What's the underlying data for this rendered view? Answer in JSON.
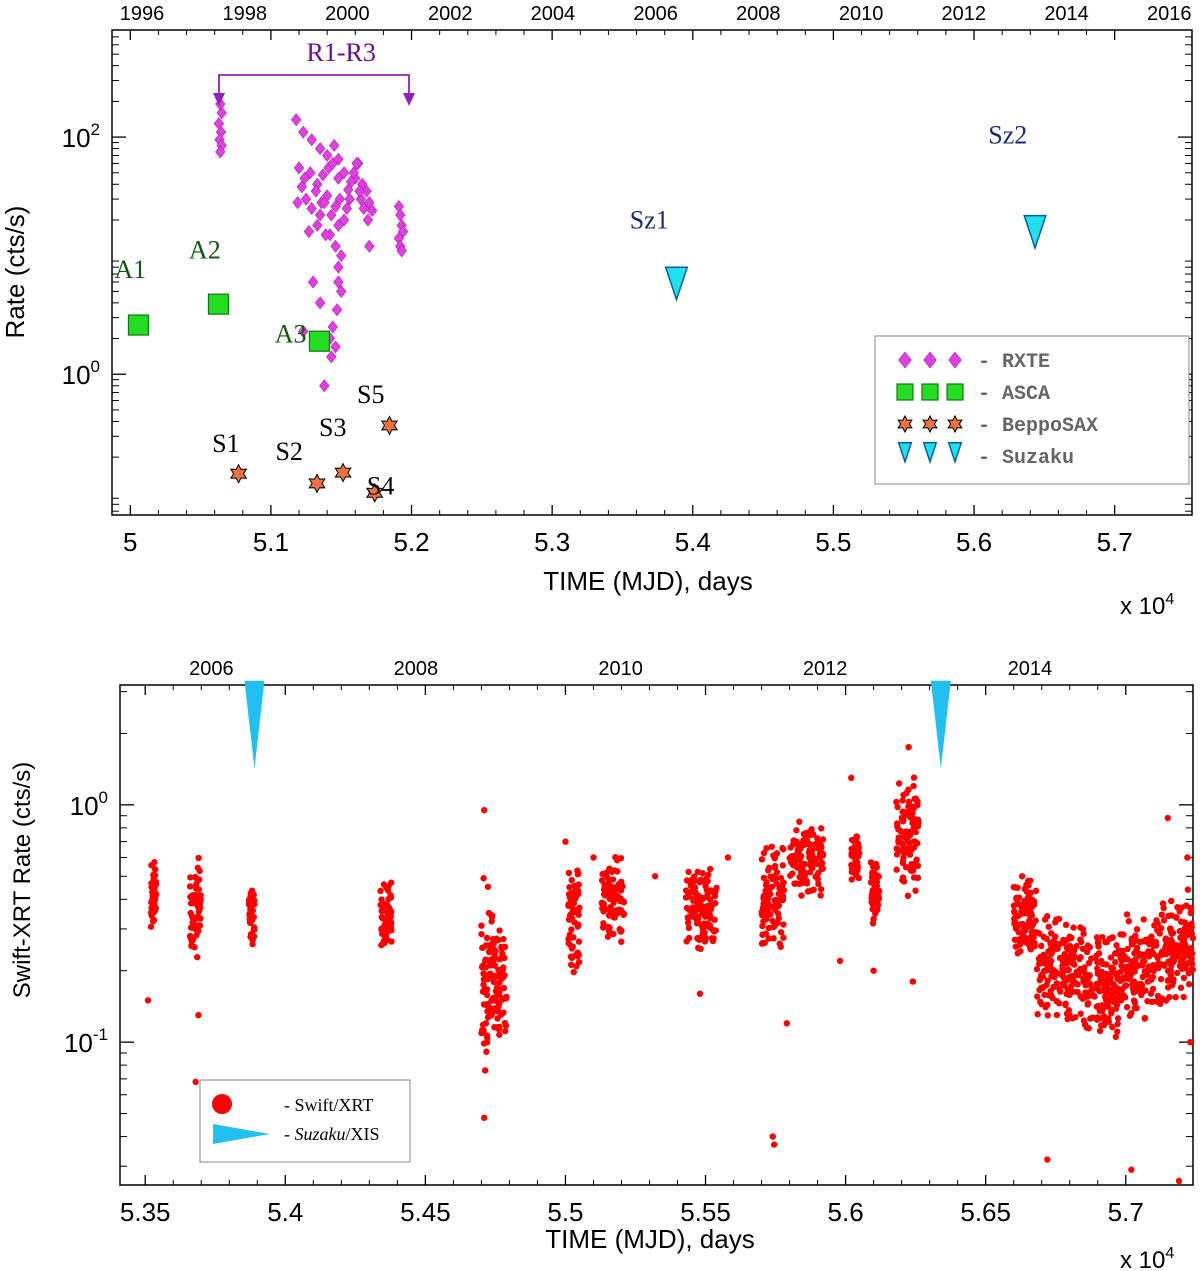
{
  "chart_data": [
    {
      "type": "scatter",
      "title": "",
      "xlabel": "TIME (MJD), days",
      "xscale_label": "x 10",
      "xscale_exp": "4",
      "ylabel": "Rate (cts/s)",
      "yscale": "log",
      "xlim": [
        49870,
        57550
      ],
      "ylim": [
        0.065,
        800
      ],
      "x_ticks": [
        {
          "v": 50000,
          "label": "5"
        },
        {
          "v": 51000,
          "label": "5.1"
        },
        {
          "v": 52000,
          "label": "5.2"
        },
        {
          "v": 53000,
          "label": "5.3"
        },
        {
          "v": 54000,
          "label": "5.4"
        },
        {
          "v": 55000,
          "label": "5.5"
        },
        {
          "v": 56000,
          "label": "5.6"
        },
        {
          "v": 57000,
          "label": "5.7"
        }
      ],
      "y_ticks": [
        {
          "v": 1,
          "base": "10",
          "exp": "0"
        },
        {
          "v": 100,
          "base": "10",
          "exp": "2"
        }
      ],
      "top_axis_years": [
        {
          "v": 50083,
          "label": "1996"
        },
        {
          "v": 50814,
          "label": "1998"
        },
        {
          "v": 51544,
          "label": "2000"
        },
        {
          "v": 52275,
          "label": "2002"
        },
        {
          "v": 53005,
          "label": "2004"
        },
        {
          "v": 53736,
          "label": "2006"
        },
        {
          "v": 54466,
          "label": "2008"
        },
        {
          "v": 55197,
          "label": "2010"
        },
        {
          "v": 55927,
          "label": "2012"
        },
        {
          "v": 56658,
          "label": "2014"
        },
        {
          "v": 57388,
          "label": "2016"
        }
      ],
      "series": [
        {
          "name": "RXTE",
          "legend_label": "- RXTE",
          "marker": "diamond",
          "color": "#e040e0",
          "points": [
            [
              50640,
              190
            ],
            [
              50650,
              160
            ],
            [
              50630,
              130
            ],
            [
              50645,
              110
            ],
            [
              50635,
              95
            ],
            [
              50650,
              85
            ],
            [
              50640,
              75
            ],
            [
              51180,
              140
            ],
            [
              51230,
              110
            ],
            [
              51290,
              95
            ],
            [
              51350,
              80
            ],
            [
              51400,
              70
            ],
            [
              51450,
              85
            ],
            [
              51480,
              65
            ],
            [
              51240,
              45
            ],
            [
              51280,
              50
            ],
            [
              51330,
              40
            ],
            [
              51370,
              48
            ],
            [
              51410,
              55
            ],
            [
              51440,
              60
            ],
            [
              51480,
              45
            ],
            [
              51250,
              30
            ],
            [
              51290,
              25
            ],
            [
              51320,
              35
            ],
            [
              51360,
              28
            ],
            [
              51400,
              32
            ],
            [
              51430,
              22
            ],
            [
              51460,
              26
            ],
            [
              51490,
              30
            ],
            [
              51520,
              50
            ],
            [
              51600,
              45
            ],
            [
              51650,
              40
            ],
            [
              51680,
              35
            ],
            [
              51700,
              28
            ],
            [
              51720,
              24
            ],
            [
              51620,
              60
            ],
            [
              51640,
              30
            ],
            [
              51420,
              15
            ],
            [
              51460,
              12
            ],
            [
              51480,
              8
            ],
            [
              51500,
              5
            ],
            [
              51470,
              3.5
            ],
            [
              51440,
              2.5
            ],
            [
              51420,
              2
            ],
            [
              51460,
              1.7
            ],
            [
              51430,
              1.4
            ],
            [
              51480,
              6
            ],
            [
              51500,
              10
            ],
            [
              51480,
              18
            ],
            [
              51520,
              20
            ],
            [
              51540,
              25
            ],
            [
              51560,
              30
            ],
            [
              51550,
              36
            ],
            [
              51570,
              42
            ],
            [
              51590,
              50
            ],
            [
              51610,
              60
            ],
            [
              51630,
              35
            ],
            [
              51660,
              25
            ],
            [
              51690,
              20
            ],
            [
              51700,
              12
            ],
            [
              51300,
              6
            ],
            [
              51350,
              4
            ],
            [
              51270,
              16
            ],
            [
              51330,
              18
            ],
            [
              51200,
              55
            ],
            [
              51220,
              38
            ],
            [
              51190,
              28
            ],
            [
              51910,
              26
            ],
            [
              51920,
              22
            ],
            [
              51930,
              18
            ],
            [
              51940,
              16
            ],
            [
              51910,
              14
            ],
            [
              51920,
              12
            ],
            [
              51930,
              11
            ],
            [
              51380,
              28
            ],
            [
              51350,
              22
            ],
            [
              51390,
              15
            ],
            [
              51230,
              2.3
            ],
            [
              51380,
              0.8
            ]
          ]
        },
        {
          "name": "ASCA",
          "legend_label": "- ASCA",
          "marker": "square",
          "color": "#22dd22",
          "points": [
            [
              50058,
              2.6
            ],
            [
              50627,
              3.9
            ],
            [
              51345,
              1.9
            ]
          ]
        },
        {
          "name": "BeppoSAX",
          "legend_label": "- BeppoSAX",
          "marker": "star",
          "color": "#f07040",
          "points": [
            [
              50770,
              0.145
            ],
            [
              51328,
              0.12
            ],
            [
              51513,
              0.148
            ],
            [
              51738,
              0.1
            ],
            [
              51843,
              0.37
            ]
          ]
        },
        {
          "name": "Suzaku",
          "legend_label": "- Suzaku",
          "marker": "triangle-down",
          "color": "#22e0f0",
          "points": [
            [
              53884,
              5.5
            ],
            [
              56434,
              15
            ]
          ]
        }
      ],
      "annotations": [
        {
          "text": "A1",
          "v": [
            50000,
            6.5
          ]
        },
        {
          "text": "A2",
          "v": [
            50530,
            9.5
          ]
        },
        {
          "text": "A3",
          "v": [
            51140,
            1.85
          ]
        },
        {
          "text": "S1",
          "v": [
            50680,
            0.22
          ]
        },
        {
          "text": "S2",
          "v": [
            51130,
            0.19
          ]
        },
        {
          "text": "S3",
          "v": [
            51440,
            0.3
          ]
        },
        {
          "text": "S4",
          "v": [
            51780,
            0.097
          ]
        },
        {
          "text": "S5",
          "v": [
            51710,
            0.57
          ]
        },
        {
          "text": "Sz1",
          "v": [
            53690,
            17
          ]
        },
        {
          "text": "Sz2",
          "v": [
            56240,
            88
          ]
        },
        {
          "text": "R1-R3",
          "v": [
            51500,
            440
          ]
        }
      ]
    },
    {
      "type": "scatter",
      "title": "",
      "xlabel": "TIME (MJD), days",
      "xscale_label": "x 10",
      "xscale_exp": "4",
      "ylabel": "Swift-XRT Rate (cts/s)",
      "yscale": "log",
      "xlim": [
        53410,
        57240
      ],
      "ylim": [
        0.025,
        3.2
      ],
      "x_ticks": [
        {
          "v": 53500,
          "label": "5.35"
        },
        {
          "v": 54000,
          "label": "5.4"
        },
        {
          "v": 54500,
          "label": "5.45"
        },
        {
          "v": 55000,
          "label": "5.5"
        },
        {
          "v": 55500,
          "label": "5.55"
        },
        {
          "v": 56000,
          "label": "5.6"
        },
        {
          "v": 56500,
          "label": "5.65"
        },
        {
          "v": 57000,
          "label": "5.7"
        }
      ],
      "y_ticks": [
        {
          "v": 0.1,
          "base": "10",
          "exp": "-1"
        },
        {
          "v": 1,
          "base": "10",
          "exp": "0"
        }
      ],
      "top_axis_years": [
        {
          "v": 53736,
          "label": "2006"
        },
        {
          "v": 54466,
          "label": "2008"
        },
        {
          "v": 55197,
          "label": "2010"
        },
        {
          "v": 55927,
          "label": "2012"
        },
        {
          "v": 56658,
          "label": "2014"
        }
      ],
      "clusters": [
        {
          "x": [
            53520,
            53540
          ],
          "y": [
            0.3,
            0.6
          ]
        },
        {
          "x": [
            53660,
            53700
          ],
          "y": [
            0.22,
            0.62
          ]
        },
        {
          "x": [
            53870,
            53890
          ],
          "y": [
            0.24,
            0.48
          ]
        },
        {
          "x": [
            54340,
            54380
          ],
          "y": [
            0.22,
            0.5
          ]
        },
        {
          "x": [
            54700,
            54740
          ],
          "y": [
            0.06,
            0.6
          ]
        },
        {
          "x": [
            54740,
            54790
          ],
          "y": [
            0.09,
            0.35
          ]
        },
        {
          "x": [
            55010,
            55050
          ],
          "y": [
            0.18,
            0.55
          ]
        },
        {
          "x": [
            55130,
            55210
          ],
          "y": [
            0.26,
            0.62
          ]
        },
        {
          "x": [
            55430,
            55540
          ],
          "y": [
            0.24,
            0.55
          ]
        },
        {
          "x": [
            55700,
            55780
          ],
          "y": [
            0.22,
            0.78
          ]
        },
        {
          "x": [
            55800,
            55920
          ],
          "y": [
            0.4,
            0.9
          ]
        },
        {
          "x": [
            56020,
            56050
          ],
          "y": [
            0.45,
            0.8
          ]
        },
        {
          "x": [
            56090,
            56120
          ],
          "y": [
            0.27,
            0.6
          ]
        },
        {
          "x": [
            56180,
            56260
          ],
          "y": [
            0.4,
            1.4
          ]
        },
        {
          "x": [
            56600,
            56680
          ],
          "y": [
            0.22,
            0.5
          ]
        },
        {
          "x": [
            56680,
            56850
          ],
          "y": [
            0.12,
            0.35
          ]
        },
        {
          "x": [
            56850,
            56980
          ],
          "y": [
            0.1,
            0.3
          ]
        },
        {
          "x": [
            56980,
            57120
          ],
          "y": [
            0.12,
            0.35
          ]
        },
        {
          "x": [
            57120,
            57240
          ],
          "y": [
            0.14,
            0.45
          ]
        }
      ],
      "extra_points": [
        [
          53510,
          0.15
        ],
        [
          53680,
          0.068
        ],
        [
          53690,
          0.13
        ],
        [
          54710,
          0.048
        ],
        [
          54710,
          0.95
        ],
        [
          55000,
          0.7
        ],
        [
          55100,
          0.6
        ],
        [
          55320,
          0.5
        ],
        [
          55480,
          0.16
        ],
        [
          55580,
          0.6
        ],
        [
          55740,
          0.04
        ],
        [
          55745,
          0.037
        ],
        [
          55790,
          0.12
        ],
        [
          56020,
          1.3
        ],
        [
          56225,
          1.75
        ],
        [
          56600,
          0.45
        ],
        [
          56630,
          0.5
        ],
        [
          56720,
          0.032
        ],
        [
          57020,
          0.029
        ],
        [
          57150,
          0.88
        ],
        [
          57190,
          0.026
        ],
        [
          57220,
          0.6
        ],
        [
          57230,
          0.1
        ],
        [
          56240,
          0.18
        ],
        [
          56100,
          0.2
        ],
        [
          55980,
          0.22
        ]
      ],
      "series": [
        {
          "name": "Swift/XRT",
          "legend_label": "- Swift/XRT",
          "marker": "circle",
          "color": "#ff0000"
        },
        {
          "name": "Suzaku/XIS",
          "legend_label_italic": "Suzaku",
          "legend_label_rest": "/XIS",
          "marker": "triangle-down",
          "color": "#22c0f0",
          "points": [
            [
              53890,
              2.8
            ],
            [
              56340,
              2.8
            ]
          ]
        }
      ]
    }
  ]
}
